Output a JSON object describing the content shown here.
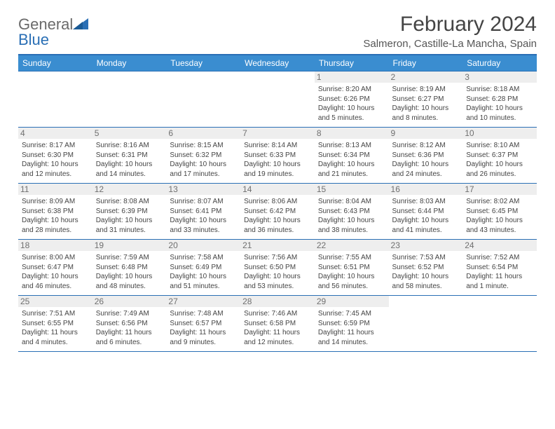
{
  "brand": {
    "part1": "General",
    "part2": "Blue"
  },
  "title": "February 2024",
  "subtitle": "Salmeron, Castille-La Mancha, Spain",
  "colors": {
    "header_bg": "#3a8dd0",
    "header_text": "#ffffff",
    "border": "#2a6fb5",
    "daynum_bg": "#eeeeee",
    "daynum_text": "#707070",
    "body_text": "#444444",
    "logo_gray": "#6a6a6a",
    "logo_blue": "#2a6fb5"
  },
  "weekdays": [
    "Sunday",
    "Monday",
    "Tuesday",
    "Wednesday",
    "Thursday",
    "Friday",
    "Saturday"
  ],
  "weeks": [
    [
      null,
      null,
      null,
      null,
      {
        "n": "1",
        "sr": "8:20 AM",
        "ss": "6:26 PM",
        "dl": "10 hours and 5 minutes."
      },
      {
        "n": "2",
        "sr": "8:19 AM",
        "ss": "6:27 PM",
        "dl": "10 hours and 8 minutes."
      },
      {
        "n": "3",
        "sr": "8:18 AM",
        "ss": "6:28 PM",
        "dl": "10 hours and 10 minutes."
      }
    ],
    [
      {
        "n": "4",
        "sr": "8:17 AM",
        "ss": "6:30 PM",
        "dl": "10 hours and 12 minutes."
      },
      {
        "n": "5",
        "sr": "8:16 AM",
        "ss": "6:31 PM",
        "dl": "10 hours and 14 minutes."
      },
      {
        "n": "6",
        "sr": "8:15 AM",
        "ss": "6:32 PM",
        "dl": "10 hours and 17 minutes."
      },
      {
        "n": "7",
        "sr": "8:14 AM",
        "ss": "6:33 PM",
        "dl": "10 hours and 19 minutes."
      },
      {
        "n": "8",
        "sr": "8:13 AM",
        "ss": "6:34 PM",
        "dl": "10 hours and 21 minutes."
      },
      {
        "n": "9",
        "sr": "8:12 AM",
        "ss": "6:36 PM",
        "dl": "10 hours and 24 minutes."
      },
      {
        "n": "10",
        "sr": "8:10 AM",
        "ss": "6:37 PM",
        "dl": "10 hours and 26 minutes."
      }
    ],
    [
      {
        "n": "11",
        "sr": "8:09 AM",
        "ss": "6:38 PM",
        "dl": "10 hours and 28 minutes."
      },
      {
        "n": "12",
        "sr": "8:08 AM",
        "ss": "6:39 PM",
        "dl": "10 hours and 31 minutes."
      },
      {
        "n": "13",
        "sr": "8:07 AM",
        "ss": "6:41 PM",
        "dl": "10 hours and 33 minutes."
      },
      {
        "n": "14",
        "sr": "8:06 AM",
        "ss": "6:42 PM",
        "dl": "10 hours and 36 minutes."
      },
      {
        "n": "15",
        "sr": "8:04 AM",
        "ss": "6:43 PM",
        "dl": "10 hours and 38 minutes."
      },
      {
        "n": "16",
        "sr": "8:03 AM",
        "ss": "6:44 PM",
        "dl": "10 hours and 41 minutes."
      },
      {
        "n": "17",
        "sr": "8:02 AM",
        "ss": "6:45 PM",
        "dl": "10 hours and 43 minutes."
      }
    ],
    [
      {
        "n": "18",
        "sr": "8:00 AM",
        "ss": "6:47 PM",
        "dl": "10 hours and 46 minutes."
      },
      {
        "n": "19",
        "sr": "7:59 AM",
        "ss": "6:48 PM",
        "dl": "10 hours and 48 minutes."
      },
      {
        "n": "20",
        "sr": "7:58 AM",
        "ss": "6:49 PM",
        "dl": "10 hours and 51 minutes."
      },
      {
        "n": "21",
        "sr": "7:56 AM",
        "ss": "6:50 PM",
        "dl": "10 hours and 53 minutes."
      },
      {
        "n": "22",
        "sr": "7:55 AM",
        "ss": "6:51 PM",
        "dl": "10 hours and 56 minutes."
      },
      {
        "n": "23",
        "sr": "7:53 AM",
        "ss": "6:52 PM",
        "dl": "10 hours and 58 minutes."
      },
      {
        "n": "24",
        "sr": "7:52 AM",
        "ss": "6:54 PM",
        "dl": "11 hours and 1 minute."
      }
    ],
    [
      {
        "n": "25",
        "sr": "7:51 AM",
        "ss": "6:55 PM",
        "dl": "11 hours and 4 minutes."
      },
      {
        "n": "26",
        "sr": "7:49 AM",
        "ss": "6:56 PM",
        "dl": "11 hours and 6 minutes."
      },
      {
        "n": "27",
        "sr": "7:48 AM",
        "ss": "6:57 PM",
        "dl": "11 hours and 9 minutes."
      },
      {
        "n": "28",
        "sr": "7:46 AM",
        "ss": "6:58 PM",
        "dl": "11 hours and 12 minutes."
      },
      {
        "n": "29",
        "sr": "7:45 AM",
        "ss": "6:59 PM",
        "dl": "11 hours and 14 minutes."
      },
      null,
      null
    ]
  ],
  "labels": {
    "sunrise": "Sunrise: ",
    "sunset": "Sunset: ",
    "daylight": "Daylight: "
  }
}
